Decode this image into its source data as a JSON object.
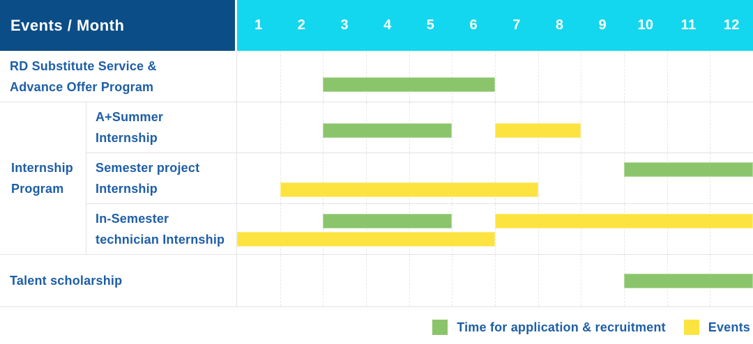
{
  "header": {
    "corner_label": "Events / Month",
    "months": [
      "1",
      "2",
      "3",
      "4",
      "5",
      "6",
      "7",
      "8",
      "9",
      "10",
      "11",
      "12"
    ]
  },
  "colors": {
    "navy": "#0b4d87",
    "cyan": "#13d7ee",
    "green": "#8bc56b",
    "yellow": "#fde33f",
    "blue": "#1d5ea7"
  },
  "group": {
    "label_lines": [
      "Internship",
      "Program"
    ]
  },
  "rows": [
    {
      "id": "rd-substitute-advance-offer",
      "label_lines": [
        "RD Substitute Service &",
        "Advance Offer Program"
      ],
      "in_group": false,
      "bars": [
        {
          "color": "green",
          "start_month": 3,
          "end_month": 6,
          "lane": "single"
        }
      ]
    },
    {
      "id": "a-plus-summer-internship",
      "label_lines": [
        "A+Summer",
        "Internship"
      ],
      "in_group": true,
      "bars": [
        {
          "color": "green",
          "start_month": 3,
          "end_month": 5,
          "lane": "single"
        },
        {
          "color": "yellow",
          "start_month": 7,
          "end_month": 8,
          "lane": "single"
        }
      ]
    },
    {
      "id": "semester-project-internship",
      "label_lines": [
        "Semester project",
        "Internship"
      ],
      "in_group": true,
      "bars": [
        {
          "color": "green",
          "start_month": 10,
          "end_month": 12,
          "lane": "upper"
        },
        {
          "color": "yellow",
          "start_month": 2,
          "end_month": 7,
          "lane": "lower"
        }
      ]
    },
    {
      "id": "in-semester-technician-internship",
      "label_lines": [
        "In-Semester",
        "technician Internship"
      ],
      "in_group": true,
      "bars": [
        {
          "color": "green",
          "start_month": 3,
          "end_month": 5,
          "lane": "upper"
        },
        {
          "color": "yellow",
          "start_month": 7,
          "end_month": 12,
          "lane": "upper"
        },
        {
          "color": "yellow",
          "start_month": 1,
          "end_month": 6,
          "lane": "lower"
        }
      ]
    },
    {
      "id": "talent-scholarship",
      "label_lines": [
        "Talent scholarship"
      ],
      "in_group": false,
      "bars": [
        {
          "color": "green",
          "start_month": 10,
          "end_month": 12,
          "lane": "single"
        }
      ]
    }
  ],
  "legend": {
    "items": [
      {
        "color": "green",
        "label": "Time for application & recruitment"
      },
      {
        "color": "yellow",
        "label": "Events"
      }
    ]
  },
  "chart_data": {
    "type": "table",
    "title": "Events / Month",
    "xlabel": "Month",
    "x_range": [
      1,
      12
    ],
    "legend": [
      "Time for application & recruitment",
      "Events"
    ],
    "legend_position": "bottom-right",
    "grid": true,
    "rows": [
      {
        "event": "RD Substitute Service & Advance Offer Program",
        "group": null,
        "application_recruitment_month_spans": [
          [
            3,
            6
          ]
        ],
        "events_month_spans": []
      },
      {
        "event": "A+Summer Internship",
        "group": "Internship Program",
        "application_recruitment_month_spans": [
          [
            3,
            5
          ]
        ],
        "events_month_spans": [
          [
            7,
            8
          ]
        ]
      },
      {
        "event": "Semester project Internship",
        "group": "Internship Program",
        "application_recruitment_month_spans": [
          [
            10,
            12
          ]
        ],
        "events_month_spans": [
          [
            2,
            7
          ]
        ]
      },
      {
        "event": "In-Semester technician Internship",
        "group": "Internship Program",
        "application_recruitment_month_spans": [
          [
            3,
            5
          ]
        ],
        "events_month_spans": [
          [
            1,
            6
          ],
          [
            7,
            12
          ]
        ]
      },
      {
        "event": "Talent scholarship",
        "group": null,
        "application_recruitment_month_spans": [
          [
            10,
            12
          ]
        ],
        "events_month_spans": []
      }
    ]
  }
}
